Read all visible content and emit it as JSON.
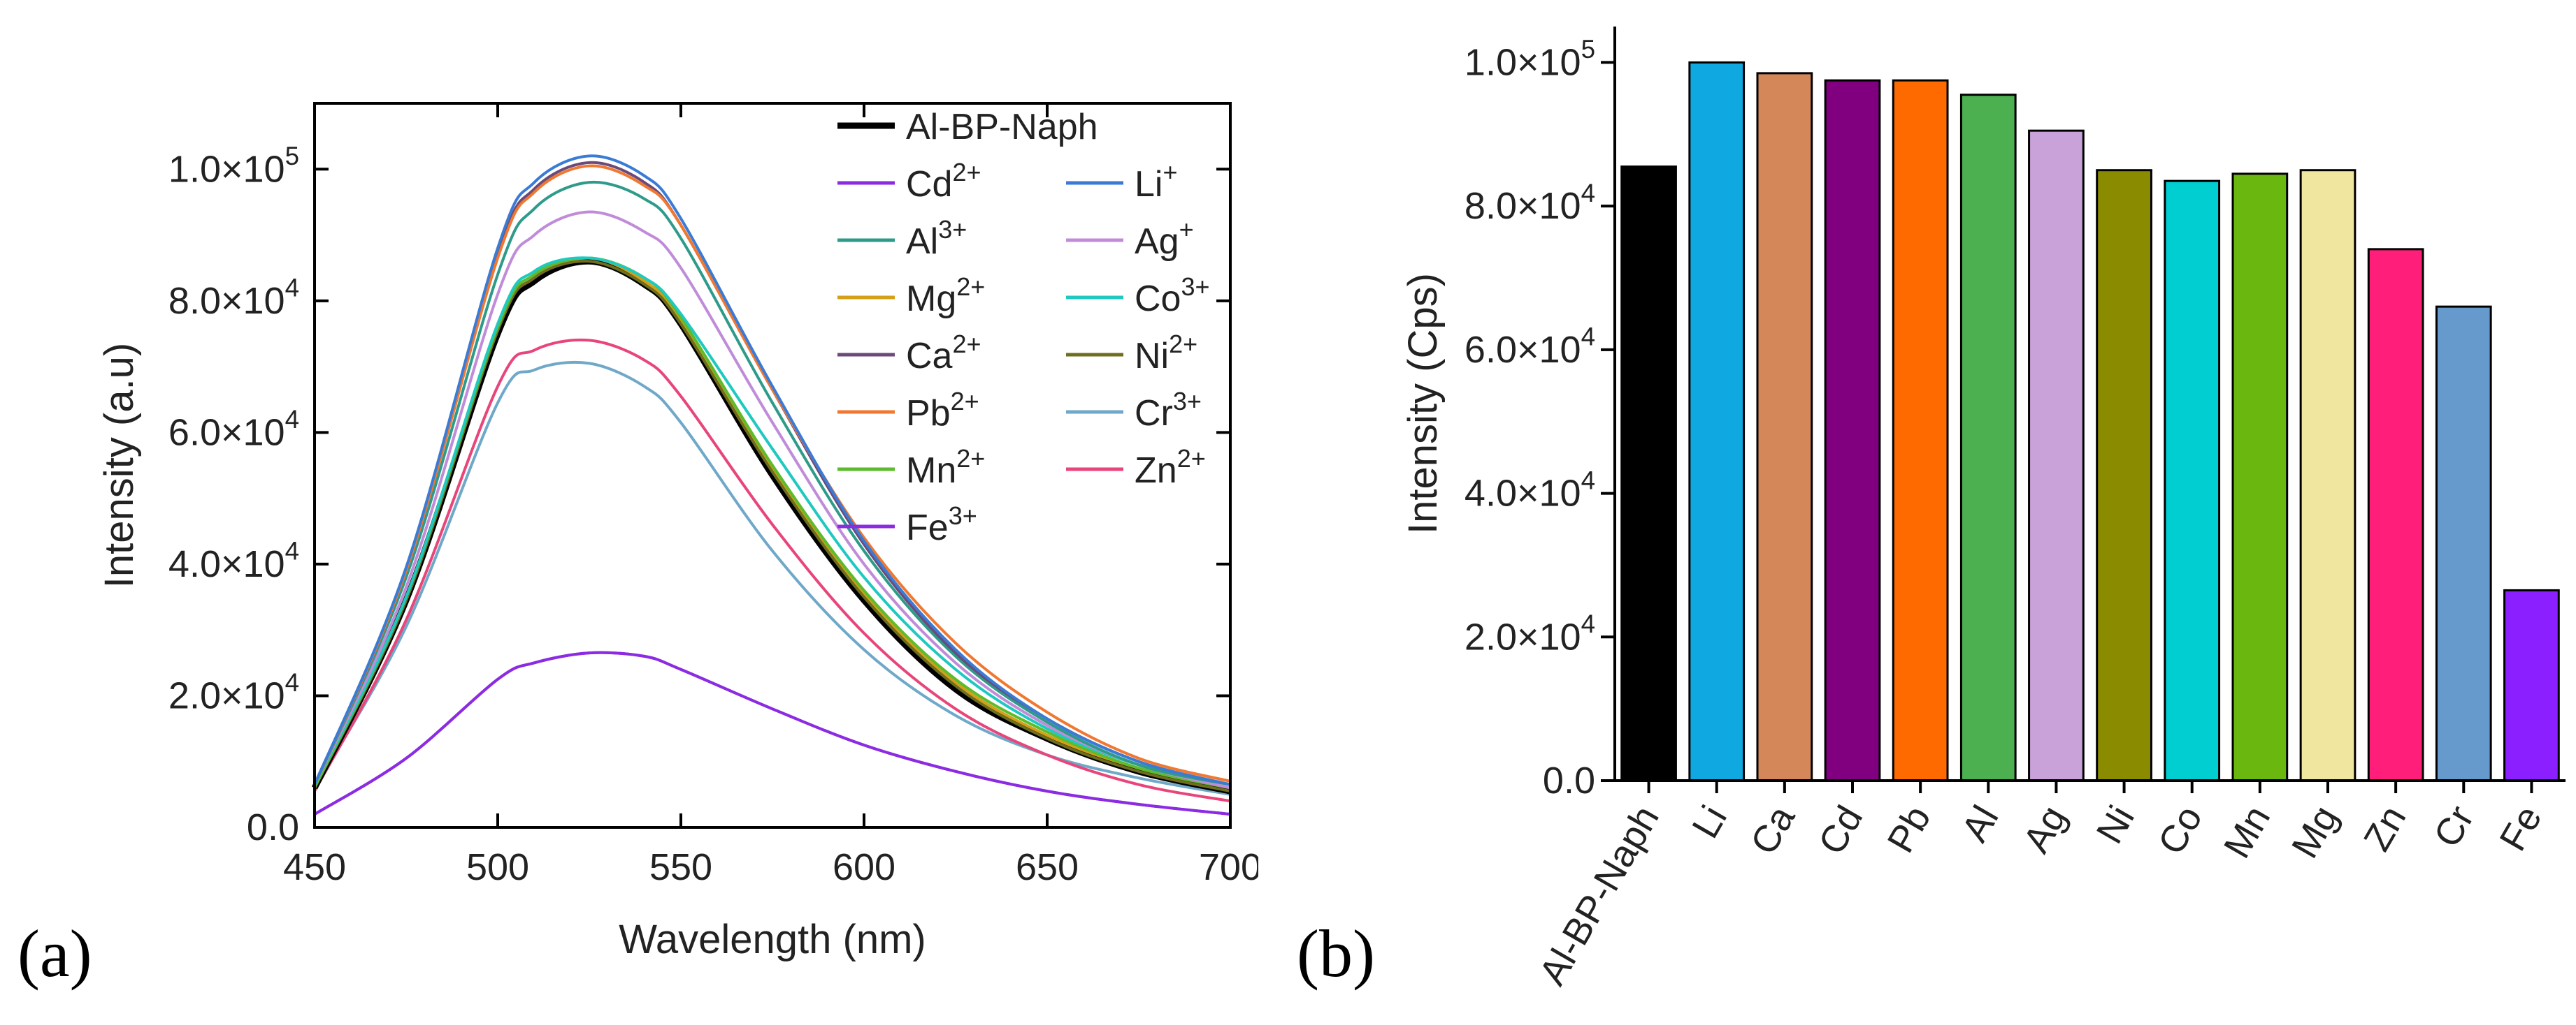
{
  "panel_labels": {
    "a": "(a)",
    "b": "(b)"
  },
  "chart_data": [
    {
      "type": "line",
      "title": "",
      "xlabel": "Wavelength (nm)",
      "ylabel": "Intensity (a.u)",
      "xlim": [
        450,
        700
      ],
      "ylim": [
        0,
        110000
      ],
      "xticks": [
        450,
        500,
        550,
        600,
        650,
        700
      ],
      "yticks": [
        {
          "value": 0,
          "mant": "0.0",
          "exp": ""
        },
        {
          "value": 20000,
          "mant": "2.0×10",
          "exp": "4"
        },
        {
          "value": 40000,
          "mant": "4.0×10",
          "exp": "4"
        },
        {
          "value": 60000,
          "mant": "6.0×10",
          "exp": "4"
        },
        {
          "value": 80000,
          "mant": "8.0×10",
          "exp": "4"
        },
        {
          "value": 100000,
          "mant": "1.0×10",
          "exp": "5"
        }
      ],
      "x": [
        450,
        475,
        500,
        510,
        525,
        540,
        550,
        575,
        600,
        625,
        650,
        675,
        700
      ],
      "series": [
        {
          "name": "Al-BP-Naph",
          "base": "Al-BP-Naph",
          "sup": "",
          "color": "#000000",
          "values": [
            6000,
            34500,
            75000,
            83000,
            86000,
            82500,
            76500,
            53500,
            34500,
            21000,
            13500,
            8500,
            5500
          ]
        },
        {
          "name": "Cd2+",
          "base": "Cd",
          "sup": "2+",
          "color": "#8B2BE2",
          "values": [
            2000,
            10500,
            22500,
            25000,
            26500,
            26000,
            24000,
            18000,
            12500,
            8500,
            5500,
            3500,
            2000
          ]
        },
        {
          "name": "Li+",
          "base": "Li",
          "sup": "+",
          "color": "#3A7BD5",
          "values": [
            6500,
            39500,
            88000,
            98000,
            102000,
            99000,
            92500,
            67000,
            43500,
            27000,
            16500,
            10000,
            6500
          ]
        },
        {
          "name": "Al3+",
          "base": "Al",
          "sup": "3+",
          "color": "#2E9B8A",
          "values": [
            6500,
            38000,
            84000,
            94000,
            98000,
            95500,
            89500,
            64500,
            42000,
            26000,
            16000,
            9500,
            6500
          ]
        },
        {
          "name": "Ag+",
          "base": "Ag",
          "sup": "+",
          "color": "#C08CD9",
          "values": [
            6500,
            36500,
            81000,
            90000,
            93500,
            90500,
            85000,
            61500,
            40000,
            25000,
            15500,
            9500,
            6000
          ]
        },
        {
          "name": "Mg2+",
          "base": "Mg",
          "sup": "2+",
          "color": "#D4A017",
          "values": [
            6000,
            34500,
            75500,
            83500,
            86500,
            83000,
            77000,
            54500,
            35500,
            22000,
            14000,
            9000,
            6000
          ]
        },
        {
          "name": "Co3+",
          "base": "Co",
          "sup": "3+",
          "color": "#20C9C0",
          "values": [
            6500,
            35000,
            76500,
            84500,
            86500,
            83500,
            78000,
            57500,
            38000,
            24000,
            15000,
            9500,
            6500
          ]
        },
        {
          "name": "Ca2+",
          "base": "Ca",
          "sup": "2+",
          "color": "#6B4A7A",
          "values": [
            6500,
            39000,
            87000,
            97000,
            101000,
            98000,
            91500,
            66500,
            43000,
            26500,
            16500,
            10000,
            6500
          ]
        },
        {
          "name": "Ni2+",
          "base": "Ni",
          "sup": "2+",
          "color": "#6E6E1E",
          "values": [
            6000,
            34500,
            75500,
            83500,
            86000,
            82500,
            76500,
            54000,
            35000,
            21500,
            13500,
            8500,
            5500
          ]
        },
        {
          "name": "Pb2+",
          "base": "Pb",
          "sup": "2+",
          "color": "#F07830",
          "values": [
            6500,
            39000,
            86500,
            96500,
            100500,
            97500,
            91500,
            66500,
            44000,
            28000,
            17500,
            10500,
            7000
          ]
        },
        {
          "name": "Cr3+",
          "base": "Cr",
          "sup": "3+",
          "color": "#6FA8C8",
          "values": [
            6000,
            30500,
            64500,
            69500,
            70500,
            67000,
            61500,
            42000,
            27000,
            17000,
            11000,
            7500,
            5000
          ]
        },
        {
          "name": "Mn2+",
          "base": "Mn",
          "sup": "2+",
          "color": "#5DBB2E",
          "values": [
            6000,
            35000,
            76000,
            84000,
            86500,
            83500,
            77500,
            55000,
            36000,
            22500,
            14500,
            9000,
            6000
          ]
        },
        {
          "name": "Zn2+",
          "base": "Zn",
          "sup": "2+",
          "color": "#E8457A",
          "values": [
            5500,
            31500,
            67000,
            72500,
            74000,
            71000,
            65500,
            46000,
            29500,
            18000,
            11000,
            6500,
            4000
          ]
        },
        {
          "name": "Fe3+",
          "base": "Fe",
          "sup": "3+",
          "color": "#8B2BE2",
          "values": [
            2000,
            10500,
            22500,
            25000,
            26500,
            26000,
            24000,
            18000,
            12500,
            8500,
            5500,
            3500,
            2000
          ]
        }
      ]
    },
    {
      "type": "bar",
      "title": "",
      "xlabel": "",
      "ylabel": "Intensity (Cps)",
      "ylim": [
        0,
        105000
      ],
      "yticks": [
        {
          "value": 0,
          "mant": "0.0",
          "exp": ""
        },
        {
          "value": 20000,
          "mant": "2.0×10",
          "exp": "4"
        },
        {
          "value": 40000,
          "mant": "4.0×10",
          "exp": "4"
        },
        {
          "value": 60000,
          "mant": "6.0×10",
          "exp": "4"
        },
        {
          "value": 80000,
          "mant": "8.0×10",
          "exp": "4"
        },
        {
          "value": 100000,
          "mant": "1.0×10",
          "exp": "5"
        }
      ],
      "categories": [
        "Al-BP-Naph",
        "Li",
        "Ca",
        "Cd",
        "Pb",
        "Al",
        "Ag",
        "Ni",
        "Co",
        "Mn",
        "Mg",
        "Zn",
        "Cr",
        "Fe"
      ],
      "values": [
        85500,
        100000,
        98500,
        97500,
        97500,
        95500,
        90500,
        85000,
        83500,
        84500,
        85000,
        74000,
        66000,
        26500
      ],
      "colors": [
        "#000000",
        "#10A8E0",
        "#D4885A",
        "#800080",
        "#FF6A00",
        "#4CAF50",
        "#C8A2D8",
        "#8B8B00",
        "#00CED1",
        "#6AB80F",
        "#F0E6A0",
        "#FF1F7A",
        "#6699CC",
        "#8B1FFF"
      ]
    }
  ]
}
